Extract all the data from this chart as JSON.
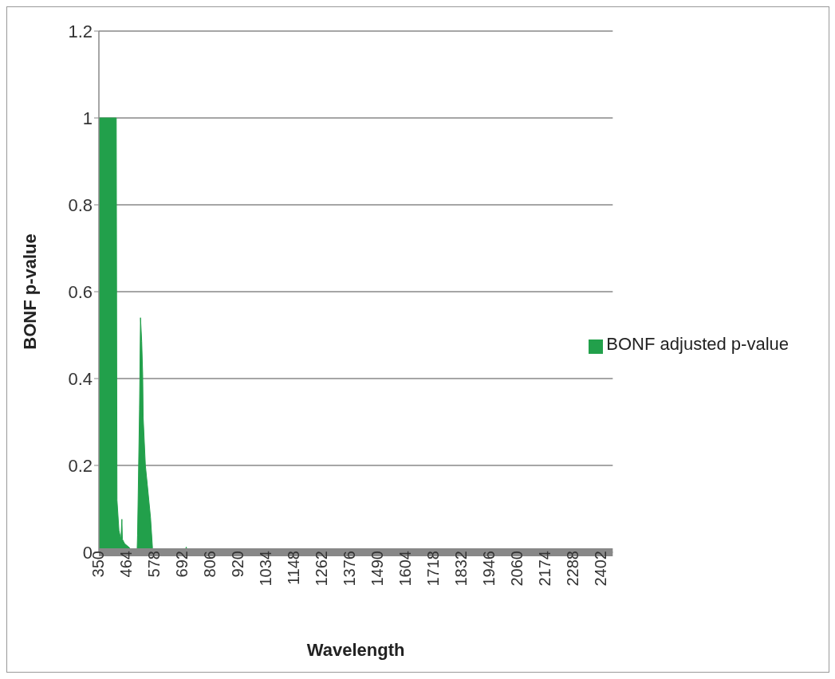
{
  "chart_data": {
    "type": "area",
    "xlabel": "Wavelength",
    "ylabel": "BONF p-value",
    "legend": "right",
    "grid": "y",
    "xlim": [
      350,
      2450
    ],
    "ylim": [
      0,
      1.2
    ],
    "xticks": [
      350,
      464,
      578,
      692,
      806,
      920,
      1034,
      1148,
      1262,
      1376,
      1490,
      1604,
      1718,
      1832,
      1946,
      2060,
      2174,
      2288,
      2402
    ],
    "yticks": [
      0,
      0.2,
      0.4,
      0.6,
      0.8,
      1,
      1.2
    ],
    "x": [
      350,
      421,
      424,
      432,
      440,
      444,
      446,
      455,
      476,
      480,
      506,
      508,
      510,
      516,
      520,
      525,
      529,
      531,
      540,
      548,
      561,
      569,
      572,
      700,
      707,
      714,
      2450
    ],
    "series": [
      {
        "name": "BONF adjusted p-value",
        "color": "#22a04b",
        "values": [
          1,
          1,
          0.12,
          0.05,
          0.03,
          0.076,
          0.03,
          0.02,
          0.01,
          0,
          0,
          0.04,
          0.11,
          0.33,
          0.54,
          0.485,
          0.41,
          0.31,
          0.2,
          0.155,
          0.08,
          0.01,
          0,
          0,
          0.012,
          0,
          0
        ]
      }
    ]
  }
}
